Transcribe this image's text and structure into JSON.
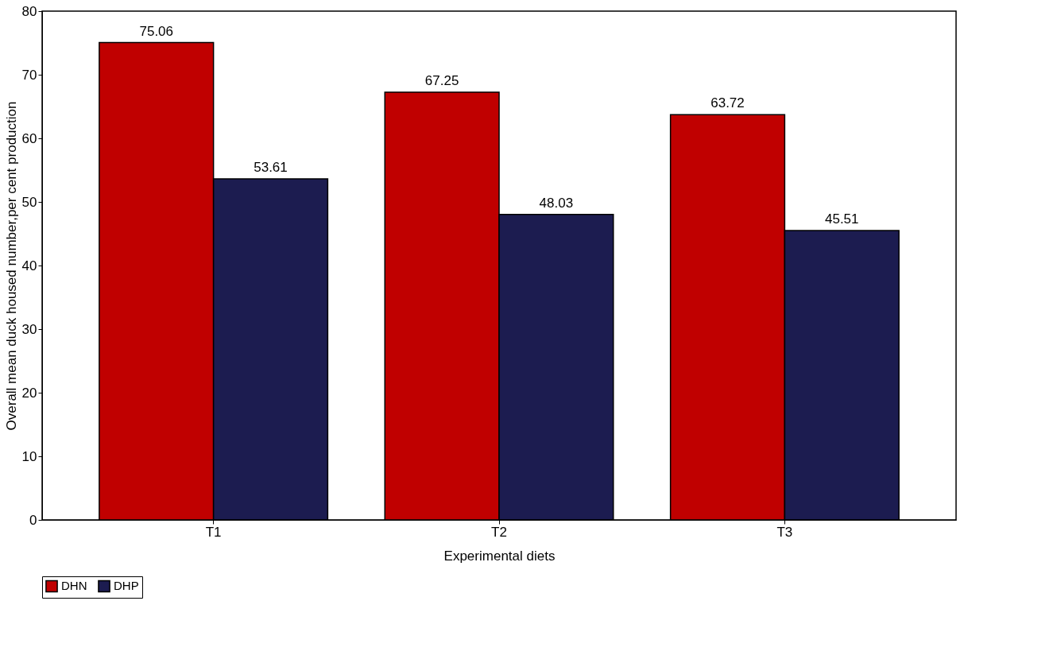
{
  "chart_data": {
    "type": "bar",
    "xlabel": "Experimental diets",
    "ylabel": "Overall mean duck housed number,per cent production",
    "categories": [
      "T1",
      "T2",
      "T3"
    ],
    "series": [
      {
        "name": "DHN",
        "color": "#c00000",
        "values": [
          75.06,
          67.25,
          63.72
        ]
      },
      {
        "name": "DHP",
        "color": "#1c1c50",
        "values": [
          53.61,
          48.03,
          45.51
        ]
      }
    ],
    "ylim": [
      0,
      80
    ],
    "yticks": [
      0,
      10,
      20,
      30,
      40,
      50,
      60,
      70,
      80
    ],
    "grid": false,
    "legend": "bottom",
    "data_labels": true
  }
}
